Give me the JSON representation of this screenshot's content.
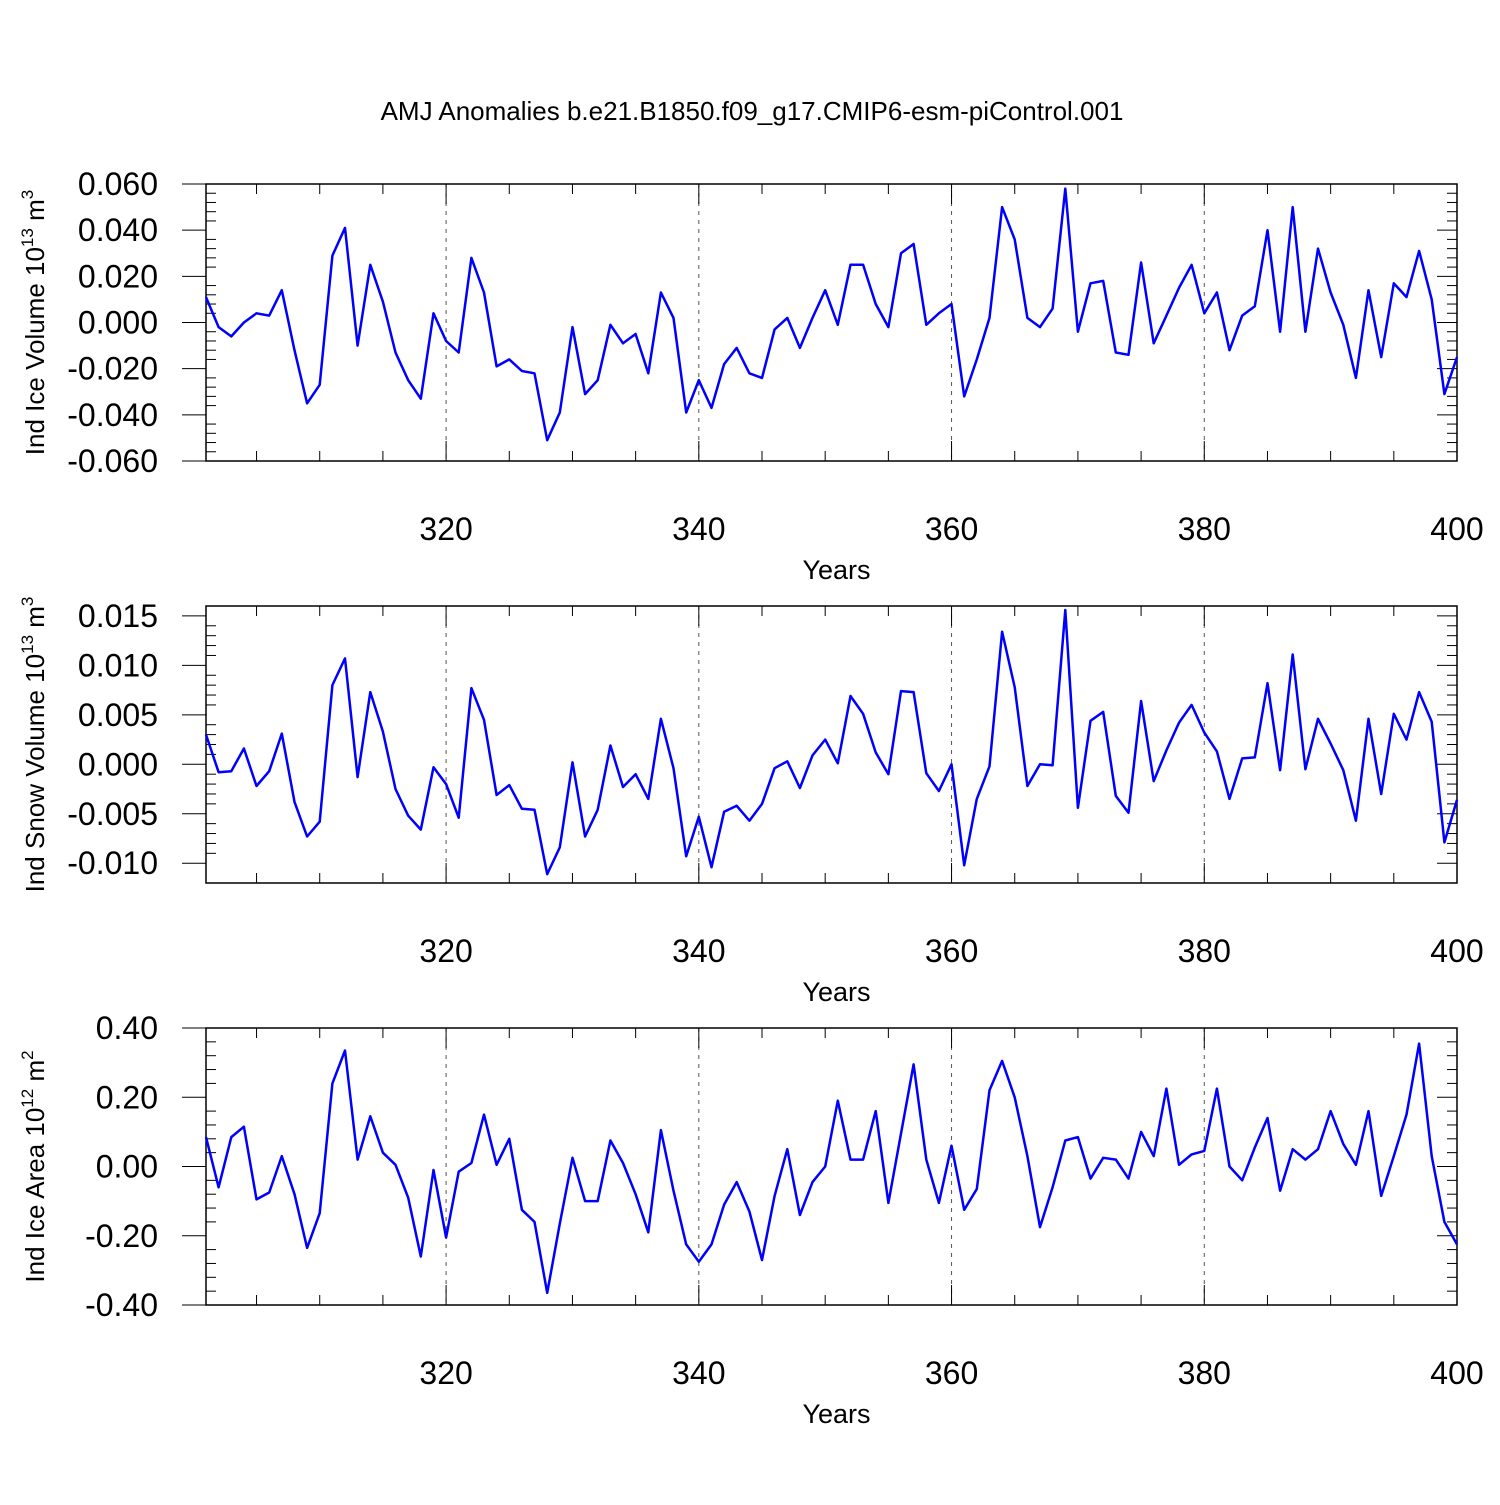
{
  "title": "AMJ Anomalies b.e21.B1850.f09_g17.CMIP6-esm-piControl.001",
  "line_color": "#0000ff",
  "chart_data": [
    {
      "type": "line",
      "ylabel": {
        "main": "Ind Ice Volume 10",
        "exponent": "13",
        "unit": " m",
        "unit_exponent": "3"
      },
      "xlabel": "Years",
      "xlim": [
        301,
        400
      ],
      "ylim": [
        -0.06,
        0.06
      ],
      "xticks": [
        320,
        340,
        360,
        380,
        400
      ],
      "xtick_labels": [
        "320",
        "340",
        "360",
        "380",
        "400"
      ],
      "yticks": [
        -0.06,
        -0.04,
        -0.02,
        0,
        0.02,
        0.04,
        0.06
      ],
      "ytick_labels": [
        "-0.060",
        "-0.040",
        "-0.020",
        "0.000",
        "0.020",
        "0.040",
        "0.060"
      ],
      "grid": "dashed vertical at major x ticks",
      "series": [
        {
          "name": "Ind Ice Volume",
          "values": [
            0.011,
            -0.002,
            -0.006,
            0.0,
            0.004,
            0.003,
            0.014,
            -0.012,
            -0.035,
            -0.027,
            0.029,
            0.041,
            -0.01,
            0.025,
            0.009,
            -0.013,
            -0.025,
            -0.033,
            0.004,
            -0.008,
            -0.013,
            0.028,
            0.013,
            -0.019,
            -0.016,
            -0.021,
            -0.022,
            -0.051,
            -0.039,
            -0.002,
            -0.031,
            -0.025,
            -0.001,
            -0.009,
            -0.005,
            -0.022,
            0.013,
            0.002,
            -0.039,
            -0.025,
            -0.037,
            -0.018,
            -0.011,
            -0.022,
            -0.024,
            -0.003,
            0.002,
            -0.011,
            0.002,
            0.014,
            -0.001,
            0.025,
            0.025,
            0.008,
            -0.002,
            0.03,
            0.034,
            -0.001,
            0.004,
            0.008,
            -0.032,
            -0.016,
            0.002,
            0.05,
            0.036,
            0.002,
            -0.002,
            0.006,
            0.058,
            -0.004,
            0.017,
            0.018,
            -0.013,
            -0.014,
            0.026,
            -0.009,
            0.003,
            0.015,
            0.025,
            0.004,
            0.013,
            -0.012,
            0.003,
            0.007,
            0.04,
            -0.004,
            0.05,
            -0.004,
            0.032,
            0.013,
            -0.001,
            -0.024,
            0.014,
            -0.015,
            0.017,
            0.011,
            0.031,
            0.01,
            -0.031,
            -0.015
          ]
        }
      ]
    },
    {
      "type": "line",
      "ylabel": {
        "main": "Ind Snow Volume 10",
        "exponent": "13",
        "unit": " m",
        "unit_exponent": "3"
      },
      "xlabel": "Years",
      "xlim": [
        301,
        400
      ],
      "ylim": [
        -0.012,
        0.016
      ],
      "xticks": [
        320,
        340,
        360,
        380,
        400
      ],
      "xtick_labels": [
        "320",
        "340",
        "360",
        "380",
        "400"
      ],
      "yticks": [
        -0.01,
        -0.005,
        0,
        0.005,
        0.01,
        0.015
      ],
      "ytick_labels": [
        "-0.010",
        "-0.005",
        "0.000",
        "0.005",
        "0.010",
        "0.015"
      ],
      "grid": "dashed vertical at major x ticks",
      "series": [
        {
          "name": "Ind Snow Volume",
          "values": [
            0.003,
            -0.0008,
            -0.0007,
            0.0016,
            -0.0022,
            -0.0007,
            0.0031,
            -0.0038,
            -0.0073,
            -0.0058,
            0.008,
            0.0107,
            -0.0013,
            0.0073,
            0.0033,
            -0.0025,
            -0.0052,
            -0.0066,
            -0.0003,
            -0.002,
            -0.0054,
            0.0077,
            0.0045,
            -0.0031,
            -0.0021,
            -0.0045,
            -0.0046,
            -0.0111,
            -0.0084,
            0.0002,
            -0.0073,
            -0.0046,
            0.0019,
            -0.0023,
            -0.001,
            -0.0035,
            0.0046,
            -0.0004,
            -0.0093,
            -0.0053,
            -0.0104,
            -0.0048,
            -0.0042,
            -0.0057,
            -0.004,
            -0.0004,
            0.0003,
            -0.0024,
            0.0009,
            0.0025,
            0.0001,
            0.0069,
            0.0051,
            0.0012,
            -0.001,
            0.0074,
            0.0073,
            -0.0009,
            -0.0027,
            0.0,
            -0.0102,
            -0.0035,
            -0.0002,
            0.0134,
            0.0078,
            -0.0022,
            0.0,
            -0.0001,
            0.0156,
            -0.0044,
            0.0044,
            0.0053,
            -0.0032,
            -0.0049,
            0.0064,
            -0.0017,
            0.0014,
            0.0042,
            0.006,
            0.0032,
            0.0013,
            -0.0035,
            0.0006,
            0.0007,
            0.0082,
            -0.0006,
            0.0111,
            -0.0005,
            0.0046,
            0.0021,
            -0.0006,
            -0.0057,
            0.0046,
            -0.003,
            0.0051,
            0.0025,
            0.0073,
            0.0043,
            -0.0079,
            -0.0036
          ]
        }
      ]
    },
    {
      "type": "line",
      "ylabel": {
        "main": "Ind Ice Area 10",
        "exponent": "12",
        "unit": " m",
        "unit_exponent": "2"
      },
      "xlabel": "Years",
      "xlim": [
        301,
        400
      ],
      "ylim": [
        -0.4,
        0.4
      ],
      "xticks": [
        320,
        340,
        360,
        380,
        400
      ],
      "xtick_labels": [
        "320",
        "340",
        "360",
        "380",
        "400"
      ],
      "yticks": [
        -0.4,
        -0.2,
        0,
        0.2,
        0.4
      ],
      "ytick_labels": [
        "-0.40",
        "-0.20",
        "0.00",
        "0.20",
        "0.40"
      ],
      "grid": "dashed vertical at major x ticks",
      "series": [
        {
          "name": "Ind Ice Area",
          "values": [
            0.085,
            -0.06,
            0.085,
            0.115,
            -0.095,
            -0.075,
            0.03,
            -0.08,
            -0.235,
            -0.135,
            0.24,
            0.335,
            0.02,
            0.145,
            0.04,
            0.005,
            -0.09,
            -0.26,
            -0.01,
            -0.205,
            -0.015,
            0.01,
            0.15,
            0.005,
            0.08,
            -0.125,
            -0.16,
            -0.365,
            -0.165,
            0.025,
            -0.1,
            -0.1,
            0.075,
            0.01,
            -0.08,
            -0.19,
            0.105,
            -0.07,
            -0.225,
            -0.275,
            -0.225,
            -0.11,
            -0.045,
            -0.13,
            -0.27,
            -0.085,
            0.05,
            -0.14,
            -0.045,
            0.0,
            0.19,
            0.02,
            0.02,
            0.16,
            -0.105,
            0.095,
            0.295,
            0.02,
            -0.105,
            0.06,
            -0.125,
            -0.065,
            0.22,
            0.305,
            0.2,
            0.03,
            -0.175,
            -0.06,
            0.075,
            0.085,
            -0.035,
            0.025,
            0.02,
            -0.035,
            0.1,
            0.03,
            0.225,
            0.005,
            0.035,
            0.045,
            0.225,
            0.0,
            -0.04,
            0.055,
            0.14,
            -0.07,
            0.05,
            0.02,
            0.05,
            0.16,
            0.065,
            0.005,
            0.16,
            -0.085,
            0.03,
            0.15,
            0.355,
            0.03,
            -0.16,
            -0.225
          ]
        }
      ]
    }
  ]
}
